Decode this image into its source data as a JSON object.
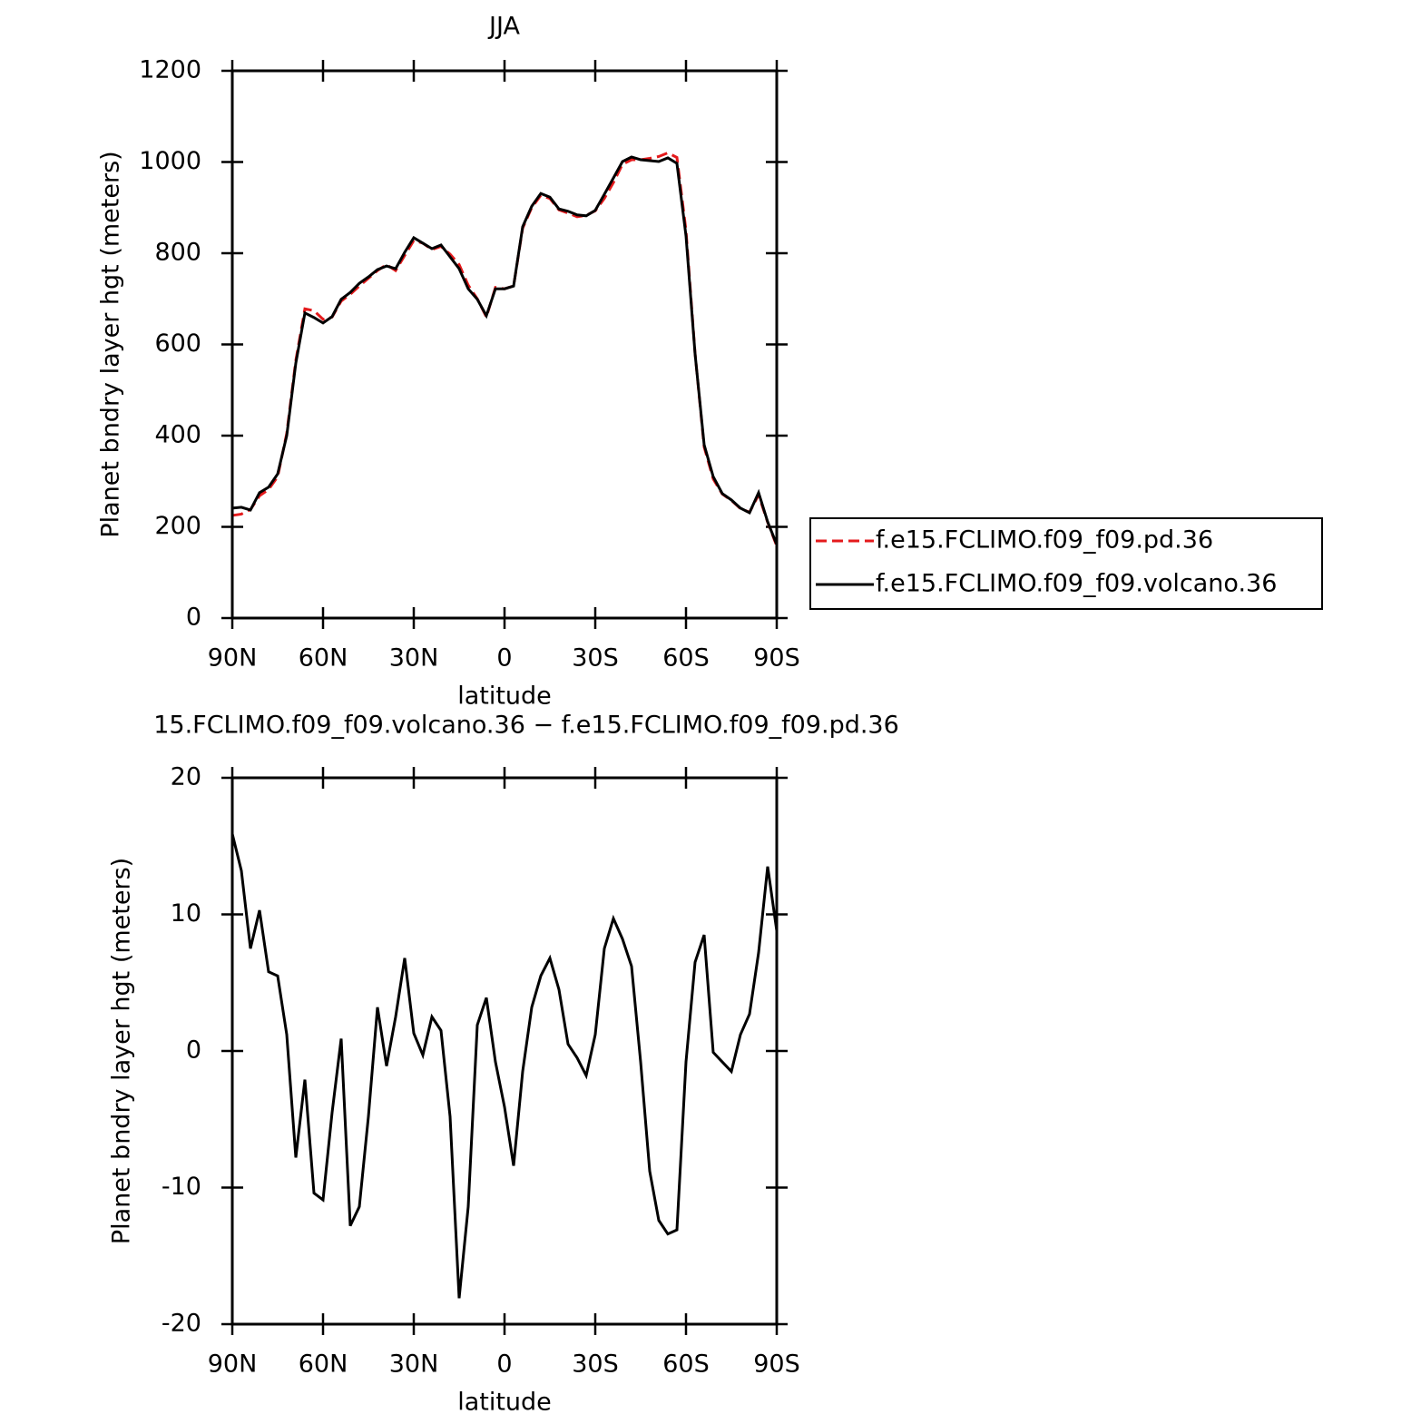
{
  "chart_data": [
    {
      "type": "line",
      "title": "JJA",
      "xlabel": "latitude",
      "ylabel": "Planet bndry layer hgt (meters)",
      "x": [
        90,
        87,
        84,
        81,
        78,
        75,
        72,
        69,
        66,
        63,
        60,
        57,
        54,
        51,
        48,
        45,
        42,
        39,
        36,
        33,
        30,
        27,
        24,
        21,
        18,
        15,
        12,
        9,
        6,
        3,
        0,
        -3,
        -6,
        -9,
        -12,
        -15,
        -18,
        -21,
        -24,
        -27,
        -30,
        -33,
        -36,
        -39,
        -42,
        -45,
        -48,
        -51,
        -54,
        -57,
        -60,
        -63,
        -66,
        -69,
        -72,
        -75,
        -78,
        -81,
        -84,
        -87,
        -90
      ],
      "series": [
        {
          "name": "f.e15.FCLIMO.f09_f09.pd.36",
          "color": "#e41a1c",
          "dash": "dashed",
          "values": [
            225,
            228,
            238,
            268,
            282,
            310,
            405,
            565,
            678,
            674,
            655,
            660,
            695,
            710,
            728,
            745,
            762,
            775,
            762,
            795,
            828,
            822,
            808,
            815,
            798,
            775,
            730,
            700,
            660,
            725,
            722,
            728,
            855,
            900,
            927,
            920,
            895,
            888,
            880,
            883,
            893,
            920,
            955,
            995,
            1005,
            1005,
            1008,
            1012,
            1020,
            1010,
            850,
            580,
            375,
            305,
            272,
            258,
            240,
            232,
            270,
            210,
            158
          ]
        },
        {
          "name": "f.e15.FCLIMO.f09_f09.volcano.36",
          "color": "#000000",
          "dash": "solid",
          "values": [
            241,
            243,
            237,
            275,
            287,
            316,
            400,
            559,
            669,
            659,
            647,
            661,
            699,
            714,
            734,
            748,
            764,
            772,
            766,
            802,
            834,
            822,
            810,
            818,
            792,
            766,
            722,
            699,
            663,
            722,
            722,
            728,
            858,
            903,
            931,
            923,
            897,
            892,
            884,
            882,
            894,
            929,
            965,
            1001,
            1011,
            1005,
            1003,
            1001,
            1009,
            997,
            838,
            579,
            380,
            310,
            273,
            259,
            241,
            231,
            275,
            211,
            161
          ]
        }
      ],
      "xlim": [
        90,
        -90
      ],
      "xticks": [
        {
          "value": 90,
          "label": "90N"
        },
        {
          "value": 60,
          "label": "60N"
        },
        {
          "value": 30,
          "label": "30N"
        },
        0,
        {
          "value": -30,
          "label": "30S"
        },
        {
          "value": -60,
          "label": "60S"
        },
        {
          "value": -90,
          "label": "90S"
        }
      ],
      "ylim": [
        0,
        1200
      ],
      "yticks": [
        0,
        200,
        400,
        600,
        800,
        1000,
        1200
      ],
      "legend": "right"
    },
    {
      "type": "line",
      "title": "15.FCLIMO.f09_f09.volcano.36 − f.e15.FCLIMO.f09_f09.pd.36",
      "xlabel": "latitude",
      "ylabel": "Planet bndry layer hgt (meters)",
      "x": [
        90,
        87,
        84,
        81,
        78,
        75,
        72,
        69,
        66,
        63,
        60,
        57,
        54,
        51,
        48,
        45,
        42,
        39,
        36,
        33,
        30,
        27,
        24,
        21,
        18,
        15,
        12,
        9,
        6,
        3,
        0,
        -3,
        -6,
        -9,
        -12,
        -15,
        -18,
        -21,
        -24,
        -27,
        -30,
        -33,
        -36,
        -39,
        -42,
        -45,
        -48,
        -51,
        -54,
        -57,
        -60,
        -63,
        -66,
        -69,
        -72,
        -75,
        -78,
        -81,
        -84,
        -87,
        -90
      ],
      "color": "#000000",
      "values": [
        15.9,
        13.2,
        7.5,
        10.3,
        5.8,
        5.5,
        1.2,
        -7.8,
        -2.1,
        -10.4,
        -10.9,
        -4.5,
        0.9,
        -12.8,
        -11.4,
        -4.8,
        3.2,
        -1.1,
        2.5,
        6.8,
        1.3,
        -0.3,
        2.5,
        1.5,
        -4.8,
        -18.1,
        -11.4,
        1.9,
        3.9,
        -0.8,
        -4.1,
        -8.4,
        -1.5,
        3.2,
        5.5,
        6.8,
        4.5,
        0.5,
        -0.5,
        -1.8,
        1.2,
        7.5,
        9.7,
        8.2,
        6.2,
        -0.8,
        -8.8,
        -12.4,
        -13.4,
        -13.1,
        -0.8,
        6.5,
        8.5,
        -0.1,
        -0.8,
        -1.5,
        1.2,
        2.7,
        7.2,
        13.5,
        8.8
      ],
      "xlim": [
        90,
        -90
      ],
      "xticks": [
        {
          "value": 90,
          "label": "90N"
        },
        {
          "value": 60,
          "label": "60N"
        },
        {
          "value": 30,
          "label": "30N"
        },
        0,
        {
          "value": -30,
          "label": "30S"
        },
        {
          "value": -60,
          "label": "60S"
        },
        {
          "value": -90,
          "label": "90S"
        }
      ],
      "ylim": [
        -20,
        20
      ],
      "yticks": [
        -20,
        -10,
        0,
        10,
        20
      ]
    }
  ]
}
